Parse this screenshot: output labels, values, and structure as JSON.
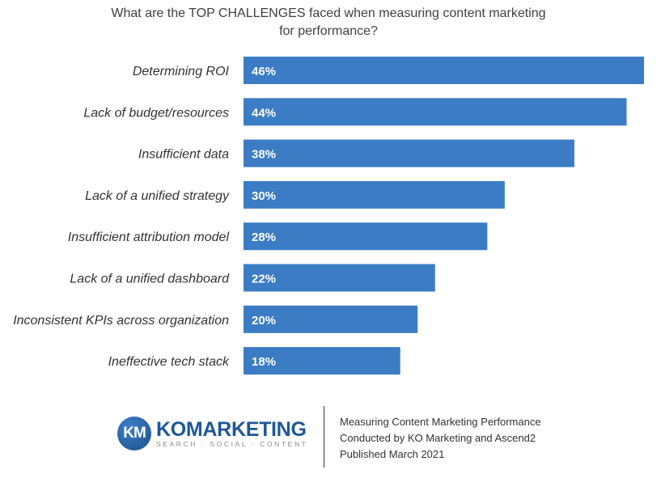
{
  "chart_data": {
    "type": "bar",
    "orientation": "horizontal",
    "title": "What are the TOP CHALLENGES faced when measuring content marketing for performance?",
    "title_lines": [
      "What are the TOP CHALLENGES faced when measuring content marketing",
      "for performance?"
    ],
    "categories": [
      "Determining ROI",
      "Lack of budget/resources",
      "Insufficient data",
      "Lack of a unified strategy",
      "Insufficient attribution model",
      "Lack of a unified dashboard",
      "Inconsistent KPIs across organization",
      "Ineffective tech stack"
    ],
    "values": [
      46,
      44,
      38,
      30,
      28,
      22,
      20,
      18
    ],
    "value_labels": [
      "46%",
      "44%",
      "38%",
      "30%",
      "28%",
      "22%",
      "20%",
      "18%"
    ],
    "unit": "%",
    "xlim": [
      0,
      46
    ],
    "bar_color": "#3b7cc4",
    "grid": false,
    "legend": "none"
  },
  "footer": {
    "logo": {
      "badge": "KM",
      "word_ko": "KO",
      "word_rest": "MARKETING",
      "tagline": "SEARCH · SOCIAL · CONTENT"
    },
    "source_lines": [
      "Measuring Content Marketing Performance",
      "Conducted by KO Marketing and Ascend2",
      "Published March 2021"
    ]
  }
}
